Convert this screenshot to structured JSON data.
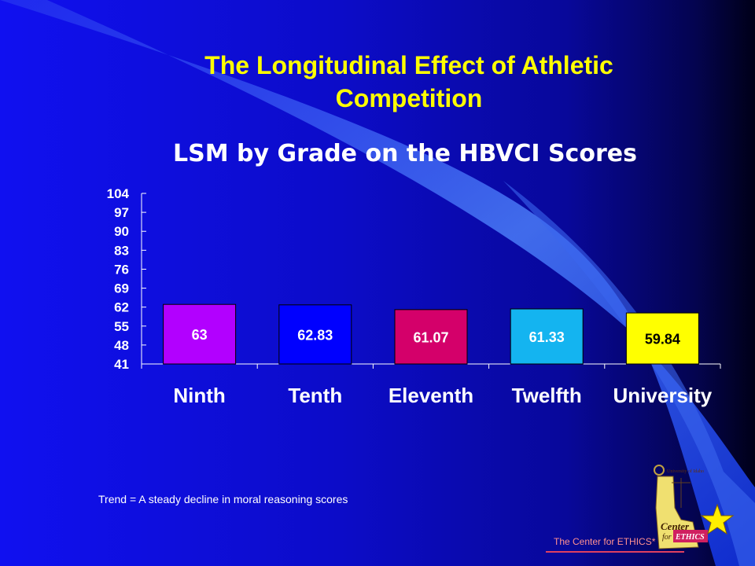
{
  "slide": {
    "title": "The Longitudinal Effect of Athletic Competition",
    "trend_note": "Trend = A steady decline in moral reasoning scores",
    "footer": "The Center for ETHICS*",
    "logo": {
      "university_text": "University of Idaho",
      "center_text": "Center",
      "for_text": "for",
      "ethics_text": "ETHICS"
    }
  },
  "chart_data": {
    "type": "bar",
    "title": "LSM by Grade on the HBVCI Scores",
    "categories": [
      "Ninth",
      "Tenth",
      "Eleventh",
      "Twelfth",
      "University"
    ],
    "values": [
      63,
      62.83,
      61.07,
      61.33,
      59.84
    ],
    "value_labels": [
      "63",
      "62.83",
      "61.07",
      "61.33",
      "59.84"
    ],
    "colors": [
      "#b200ff",
      "#0000ff",
      "#d4006a",
      "#14b4f0",
      "#ffff00"
    ],
    "label_colors": [
      "#ffffff",
      "#ffffff",
      "#ffffff",
      "#ffffff",
      "#000000"
    ],
    "yticks": [
      "104",
      "97",
      "90",
      "83",
      "76",
      "69",
      "62",
      "55",
      "48",
      "41"
    ],
    "ylim": [
      41,
      104
    ],
    "xlabel": "",
    "ylabel": "",
    "grid": false,
    "legend": "none"
  }
}
